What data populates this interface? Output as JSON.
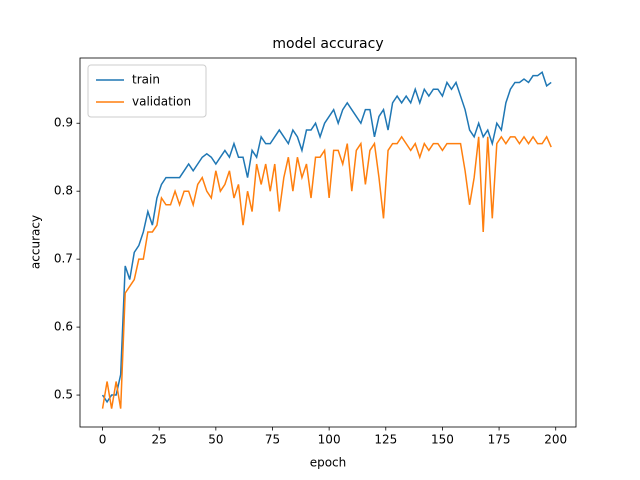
{
  "chart_data": {
    "type": "line",
    "title": "model accuracy",
    "x_label": "epoch",
    "y_label": "accuracy",
    "x": [
      0,
      2,
      4,
      6,
      8,
      10,
      12,
      14,
      16,
      18,
      20,
      22,
      24,
      26,
      28,
      30,
      32,
      34,
      36,
      38,
      40,
      42,
      44,
      46,
      48,
      50,
      52,
      54,
      56,
      58,
      60,
      62,
      64,
      66,
      68,
      70,
      72,
      74,
      76,
      78,
      80,
      82,
      84,
      86,
      88,
      90,
      92,
      94,
      96,
      98,
      100,
      102,
      104,
      106,
      108,
      110,
      112,
      114,
      116,
      118,
      120,
      122,
      124,
      126,
      128,
      130,
      132,
      134,
      136,
      138,
      140,
      142,
      144,
      146,
      148,
      150,
      152,
      154,
      156,
      158,
      160,
      162,
      164,
      166,
      168,
      170,
      172,
      174,
      176,
      178,
      180,
      182,
      184,
      186,
      188,
      190,
      192,
      194,
      196,
      198
    ],
    "series": [
      {
        "name": "train",
        "color": "#1f77b4",
        "values": [
          0.5,
          0.49,
          0.5,
          0.5,
          0.53,
          0.69,
          0.67,
          0.71,
          0.72,
          0.74,
          0.77,
          0.75,
          0.79,
          0.81,
          0.82,
          0.82,
          0.82,
          0.82,
          0.83,
          0.84,
          0.83,
          0.84,
          0.85,
          0.855,
          0.85,
          0.84,
          0.85,
          0.86,
          0.85,
          0.87,
          0.85,
          0.85,
          0.82,
          0.86,
          0.85,
          0.88,
          0.87,
          0.87,
          0.88,
          0.89,
          0.88,
          0.87,
          0.89,
          0.88,
          0.86,
          0.89,
          0.89,
          0.9,
          0.88,
          0.9,
          0.91,
          0.92,
          0.9,
          0.92,
          0.93,
          0.92,
          0.91,
          0.9,
          0.92,
          0.92,
          0.88,
          0.91,
          0.92,
          0.89,
          0.93,
          0.94,
          0.93,
          0.94,
          0.93,
          0.95,
          0.93,
          0.95,
          0.94,
          0.95,
          0.95,
          0.94,
          0.96,
          0.95,
          0.96,
          0.94,
          0.92,
          0.89,
          0.88,
          0.9,
          0.88,
          0.89,
          0.87,
          0.9,
          0.89,
          0.93,
          0.95,
          0.96,
          0.96,
          0.965,
          0.96,
          0.97,
          0.97,
          0.975,
          0.955,
          0.96
        ]
      },
      {
        "name": "validation",
        "color": "#ff7f0e",
        "values": [
          0.48,
          0.52,
          0.48,
          0.52,
          0.48,
          0.65,
          0.66,
          0.67,
          0.7,
          0.7,
          0.74,
          0.74,
          0.75,
          0.79,
          0.78,
          0.78,
          0.8,
          0.78,
          0.8,
          0.8,
          0.78,
          0.81,
          0.82,
          0.8,
          0.79,
          0.83,
          0.8,
          0.81,
          0.83,
          0.79,
          0.81,
          0.75,
          0.8,
          0.77,
          0.84,
          0.81,
          0.84,
          0.8,
          0.84,
          0.77,
          0.82,
          0.85,
          0.8,
          0.85,
          0.82,
          0.84,
          0.79,
          0.85,
          0.85,
          0.86,
          0.79,
          0.86,
          0.86,
          0.84,
          0.87,
          0.8,
          0.86,
          0.87,
          0.81,
          0.86,
          0.87,
          0.82,
          0.76,
          0.86,
          0.87,
          0.87,
          0.88,
          0.87,
          0.86,
          0.87,
          0.85,
          0.87,
          0.86,
          0.87,
          0.87,
          0.86,
          0.87,
          0.87,
          0.87,
          0.87,
          0.83,
          0.78,
          0.82,
          0.88,
          0.74,
          0.88,
          0.76,
          0.87,
          0.88,
          0.87,
          0.88,
          0.88,
          0.87,
          0.88,
          0.87,
          0.88,
          0.87,
          0.87,
          0.88,
          0.865
        ]
      }
    ],
    "xlim": [
      -9.95,
      208.95
    ],
    "ylim": [
      0.453,
      0.996
    ],
    "xticks": [
      0,
      25,
      50,
      75,
      100,
      125,
      150,
      175,
      200
    ],
    "yticks": [
      0.5,
      0.6,
      0.7,
      0.8,
      0.9
    ],
    "legend": "upper left"
  }
}
